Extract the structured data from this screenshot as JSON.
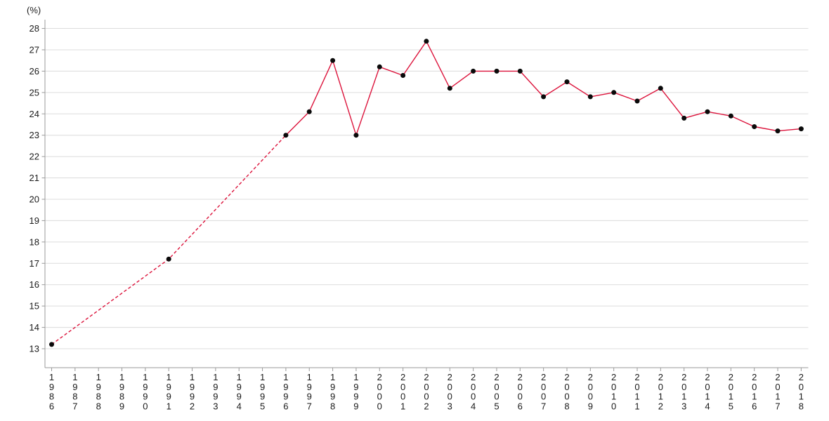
{
  "chart_data": {
    "type": "line",
    "title": "",
    "unit_label": "(%)",
    "xlabel": "",
    "ylabel": "(%)",
    "x": [
      "1986",
      "1987",
      "1988",
      "1989",
      "1990",
      "1991",
      "1992",
      "1993",
      "1994",
      "1995",
      "1996",
      "1997",
      "1998",
      "1999",
      "2000",
      "2001",
      "2002",
      "2003",
      "2004",
      "2005",
      "2006",
      "2007",
      "2008",
      "2009",
      "2010",
      "2011",
      "2012",
      "2013",
      "2014",
      "2015",
      "2016",
      "2017",
      "2018"
    ],
    "series": [
      {
        "values": [
          13.2,
          null,
          null,
          null,
          null,
          17.2,
          null,
          null,
          null,
          null,
          23.0,
          24.1,
          26.5,
          23.0,
          26.2,
          25.8,
          27.4,
          25.2,
          26.0,
          26.0,
          26.0,
          24.8,
          25.5,
          24.8,
          25.0,
          24.6,
          25.2,
          23.8,
          24.1,
          23.9,
          23.4,
          23.2,
          23.3
        ]
      }
    ],
    "dashed_until_x": "1996",
    "ylim": [
      13,
      28
    ],
    "y_ticks": [
      13,
      14,
      15,
      16,
      17,
      18,
      19,
      20,
      21,
      22,
      23,
      24,
      25,
      26,
      27,
      28
    ],
    "grid": "horizontal",
    "legend": "none",
    "marker": "circle",
    "colors": {
      "line": "#dc143c",
      "marker": "#0a0a0a",
      "gridline": "#dcdcdc",
      "axis": "#9a9a9a",
      "tick_label": "#1a1a1a"
    }
  }
}
